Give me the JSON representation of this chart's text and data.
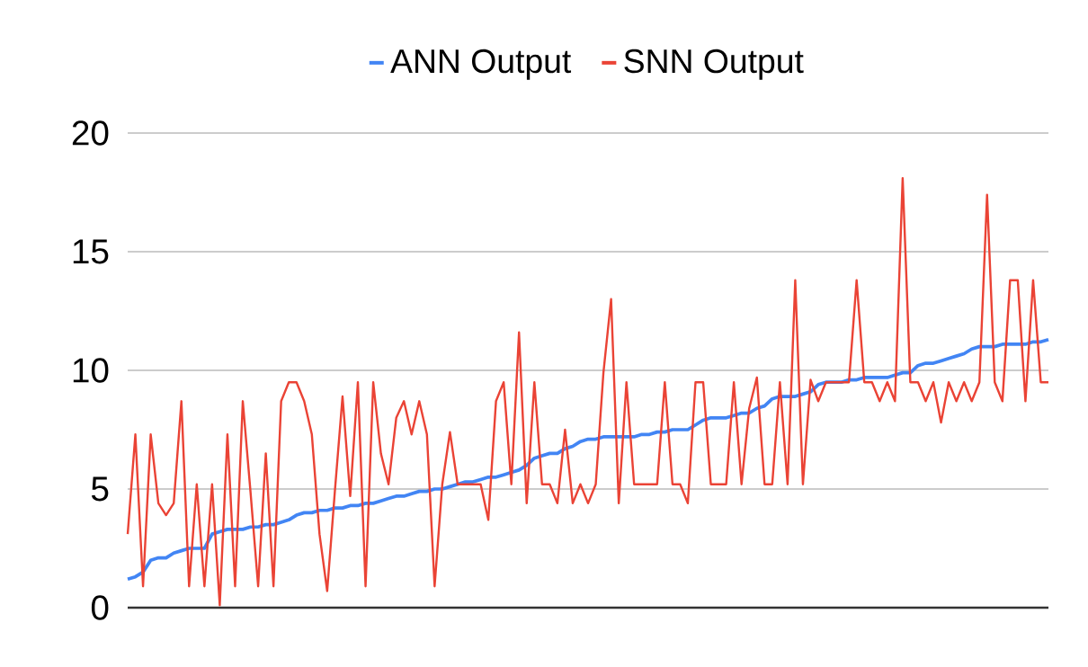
{
  "chart_data": {
    "type": "line",
    "categories": [
      null,
      null,
      null,
      null,
      null,
      null,
      null,
      null,
      null,
      null,
      null,
      null,
      null,
      null,
      null,
      null,
      null,
      null,
      null,
      null,
      null,
      null,
      null,
      null,
      null,
      null,
      null,
      null,
      null,
      null,
      null,
      null,
      null,
      null,
      null,
      null,
      null,
      null,
      null,
      null,
      null,
      null,
      null,
      null,
      null,
      null,
      null,
      null,
      null,
      null,
      null,
      null,
      null,
      null,
      null,
      null,
      null,
      null,
      null,
      null,
      null,
      null,
      null,
      null,
      null,
      null,
      null,
      null,
      null,
      null,
      null,
      null,
      null,
      null,
      null,
      null,
      null,
      null,
      null,
      null,
      null,
      null,
      null,
      null,
      null,
      null,
      null,
      null,
      null,
      null,
      null,
      null,
      null,
      null,
      null,
      null,
      null,
      null,
      null,
      null,
      null,
      null,
      null,
      null,
      null,
      null,
      null,
      null,
      null,
      null,
      null,
      null,
      null,
      null,
      null,
      null,
      null,
      null,
      null,
      null,
      null
    ],
    "series": [
      {
        "name": "ANN Output",
        "color": "#4285f4",
        "values": [
          1.2,
          1.3,
          1.5,
          2.0,
          2.1,
          2.1,
          2.3,
          2.4,
          2.5,
          2.5,
          2.5,
          3.1,
          3.2,
          3.3,
          3.3,
          3.3,
          3.4,
          3.4,
          3.5,
          3.5,
          3.6,
          3.7,
          3.9,
          4.0,
          4.0,
          4.1,
          4.1,
          4.2,
          4.2,
          4.3,
          4.3,
          4.4,
          4.4,
          4.5,
          4.6,
          4.7,
          4.7,
          4.8,
          4.9,
          4.9,
          5.0,
          5.0,
          5.1,
          5.2,
          5.3,
          5.3,
          5.4,
          5.5,
          5.5,
          5.6,
          5.7,
          5.8,
          6.0,
          6.3,
          6.4,
          6.5,
          6.5,
          6.7,
          6.8,
          7.0,
          7.1,
          7.1,
          7.2,
          7.2,
          7.2,
          7.2,
          7.2,
          7.3,
          7.3,
          7.4,
          7.4,
          7.5,
          7.5,
          7.5,
          7.7,
          7.9,
          8.0,
          8.0,
          8.0,
          8.1,
          8.2,
          8.2,
          8.4,
          8.5,
          8.8,
          8.9,
          8.9,
          8.9,
          9.0,
          9.1,
          9.4,
          9.5,
          9.5,
          9.5,
          9.6,
          9.6,
          9.7,
          9.7,
          9.7,
          9.7,
          9.8,
          9.9,
          9.9,
          10.2,
          10.3,
          10.3,
          10.4,
          10.5,
          10.6,
          10.7,
          10.9,
          11.0,
          11.0,
          11.0,
          11.1,
          11.1,
          11.1,
          11.1,
          11.2,
          11.2,
          11.3
        ]
      },
      {
        "name": "SNN Output",
        "color": "#ea4335",
        "values": [
          3.1,
          7.3,
          0.9,
          7.3,
          4.4,
          3.9,
          4.4,
          8.7,
          0.9,
          5.2,
          0.9,
          5.2,
          0.1,
          7.3,
          0.9,
          8.7,
          4.9,
          0.9,
          6.5,
          0.9,
          8.7,
          9.5,
          9.5,
          8.7,
          7.3,
          3.1,
          0.7,
          4.9,
          8.9,
          4.7,
          9.5,
          0.9,
          9.5,
          6.5,
          5.2,
          8.0,
          8.7,
          7.3,
          8.7,
          7.3,
          0.9,
          5.2,
          7.4,
          5.2,
          5.2,
          5.2,
          5.2,
          3.7,
          8.7,
          9.5,
          5.2,
          11.6,
          4.4,
          9.5,
          5.2,
          5.2,
          4.4,
          7.5,
          4.4,
          5.2,
          4.4,
          5.2,
          9.9,
          13.0,
          4.4,
          9.5,
          5.2,
          5.2,
          5.2,
          5.2,
          9.5,
          5.2,
          5.2,
          4.4,
          9.5,
          9.5,
          5.2,
          5.2,
          5.2,
          9.5,
          5.2,
          8.4,
          9.7,
          5.2,
          5.2,
          9.5,
          5.2,
          13.8,
          5.2,
          9.6,
          8.7,
          9.5,
          9.5,
          9.5,
          9.5,
          13.8,
          9.5,
          9.5,
          8.7,
          9.5,
          8.7,
          18.1,
          9.5,
          9.5,
          8.7,
          9.5,
          7.8,
          9.5,
          8.7,
          9.5,
          8.7,
          9.5,
          17.4,
          9.5,
          8.7,
          13.8,
          13.8,
          8.7,
          13.8,
          9.5,
          9.5
        ]
      }
    ],
    "ylim": [
      0,
      20
    ],
    "yticks": [
      0,
      5,
      10,
      15,
      20
    ],
    "grid": "y",
    "legend": "top",
    "tick_labels": "y",
    "marker": "none",
    "line_style": "solid"
  }
}
